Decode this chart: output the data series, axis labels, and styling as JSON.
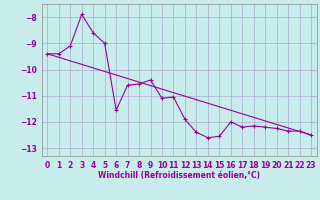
{
  "xlabel": "Windchill (Refroidissement éolien,°C)",
  "bg_color": "#c8ecec",
  "grid_color": "#aaaacc",
  "line_color": "#990099",
  "spine_color": "#888888",
  "xlim": [
    -0.5,
    23.5
  ],
  "ylim": [
    -13.3,
    -7.5
  ],
  "yticks": [
    -13,
    -12,
    -11,
    -10,
    -9,
    -8
  ],
  "xticks": [
    0,
    1,
    2,
    3,
    4,
    5,
    6,
    7,
    8,
    9,
    10,
    11,
    12,
    13,
    14,
    15,
    16,
    17,
    18,
    19,
    20,
    21,
    22,
    23
  ],
  "line1_x": [
    0,
    1,
    2,
    3,
    4,
    5,
    6,
    7,
    8,
    9,
    10,
    11,
    12,
    13,
    14,
    15,
    16,
    17,
    18,
    19,
    20,
    21,
    22,
    23
  ],
  "line1_y": [
    -9.4,
    -9.4,
    -9.1,
    -7.9,
    -8.6,
    -9.0,
    -11.55,
    -10.6,
    -10.55,
    -10.4,
    -11.1,
    -11.05,
    -11.9,
    -12.4,
    -12.6,
    -12.55,
    -12.0,
    -12.2,
    -12.15,
    -12.2,
    -12.25,
    -12.35,
    -12.35,
    -12.5
  ],
  "line2_x": [
    0,
    23
  ],
  "line2_y": [
    -9.4,
    -12.5
  ],
  "tick_fontsize": 5.5,
  "xlabel_fontsize": 5.5,
  "marker_size": 2.5,
  "linewidth": 0.8
}
